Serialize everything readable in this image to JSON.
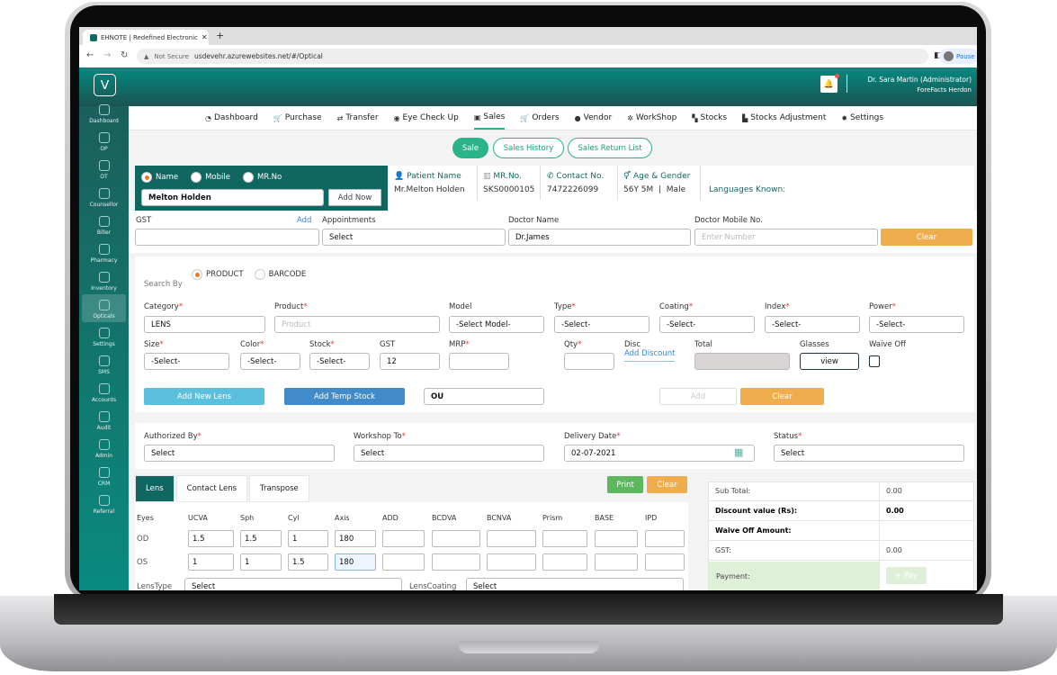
{
  "browser": {
    "tab_title": "EHNOTE | Redefined Electronic",
    "security": "Not Secure",
    "url": "usdevehr.azurewebsites.net/#/Optical",
    "profile": "Pause"
  },
  "header": {
    "user_name": "Dr. Sara Martin (Administrator)",
    "org": "ForeFacts Herdon"
  },
  "sidebar": {
    "items": [
      {
        "label": "Dashboard"
      },
      {
        "label": "OP"
      },
      {
        "label": "OT"
      },
      {
        "label": "Counsellor"
      },
      {
        "label": "Biller"
      },
      {
        "label": "Pharmacy"
      },
      {
        "label": "Inventory"
      },
      {
        "label": "Opticals",
        "active": true
      },
      {
        "label": "Settings"
      },
      {
        "label": "SMS"
      },
      {
        "label": "Accounts"
      },
      {
        "label": "Audit"
      },
      {
        "label": "Admin"
      },
      {
        "label": "CRM"
      },
      {
        "label": "Referral"
      }
    ]
  },
  "nav": {
    "items": [
      {
        "label": "Dashboard",
        "icon": "dashboard-icon"
      },
      {
        "label": "Purchase",
        "icon": "cart-icon"
      },
      {
        "label": "Transfer",
        "icon": "transfer-icon"
      },
      {
        "label": "Eye Check Up",
        "icon": "eye-icon"
      },
      {
        "label": "Sales",
        "icon": "money-icon",
        "active": true
      },
      {
        "label": "Orders",
        "icon": "cart-icon"
      },
      {
        "label": "Vendor",
        "icon": "user-icon"
      },
      {
        "label": "WorkShop",
        "icon": "gears-icon"
      },
      {
        "label": "Stocks",
        "icon": "boxes-icon"
      },
      {
        "label": "Stocks Adjustment",
        "icon": "truck-icon"
      },
      {
        "label": "Settings",
        "icon": "gear-icon"
      }
    ]
  },
  "subtabs": {
    "sale": "Sale",
    "history": "Sales History",
    "returns": "Sales Return List"
  },
  "patient_search": {
    "options": [
      "Name",
      "Mobile",
      "MR.No"
    ],
    "selected": "Name",
    "value": "Melton Holden",
    "add_now": "Add Now"
  },
  "patient": {
    "name_label": "Patient Name",
    "name": "Mr.Melton Holden",
    "mr_label": "MR.No.",
    "mr": "SKS0000105",
    "contact_label": "Contact No.",
    "contact": "7472226099",
    "age_label": "Age & Gender",
    "age": "56Y 5M",
    "gender": "Male",
    "languages_label": "Languages Known:"
  },
  "billing": {
    "gst_label": "GST",
    "gst_add": "Add",
    "gst_value": "",
    "appointments_label": "Appointments",
    "appointments": "Select",
    "doctor_label": "Doctor Name",
    "doctor": "Dr.James",
    "doctor_mobile_label": "Doctor Mobile No.",
    "doctor_mobile_placeholder": "Enter Number",
    "clear": "Clear"
  },
  "product": {
    "search_by": "Search By",
    "search_options": [
      "PRODUCT",
      "BARCODE"
    ],
    "selected": "PRODUCT",
    "category_label": "Category",
    "category": "LENS",
    "product_label": "Product",
    "product_placeholder": "Product",
    "model_label": "Model",
    "model": "-Select Model-",
    "type_label": "Type",
    "type": "-Select-",
    "coating_label": "Coating",
    "coating": "-Select-",
    "index_label": "Index",
    "index": "-Select-",
    "power_label": "Power",
    "power": "-Select-",
    "size_label": "Size",
    "size": "-Select-",
    "color_label": "Color",
    "color": "-Select-",
    "stock_label": "Stock",
    "stock": "-Select-",
    "gst_label": "GST",
    "gst": "12",
    "mrp_label": "MRP",
    "mrp": "",
    "qty_label": "Qty",
    "qty": "",
    "disc_label": "Disc",
    "add_discount": "Add Discount",
    "total_label": "Total",
    "glasses_label": "Glasses",
    "view": "view",
    "waive_label": "Waive Off",
    "waive_off": false,
    "add_new_lens": "Add New Lens",
    "add_temp_stock": "Add Temp Stock",
    "eye": "OU",
    "add": "Add",
    "clear": "Clear"
  },
  "order": {
    "authorized_label": "Authorized By",
    "authorized": "Select",
    "workshop_label": "Workshop To",
    "workshop": "Select",
    "delivery_label": "Delivery Date",
    "delivery": "02-07-2021",
    "status_label": "Status",
    "status": "Select"
  },
  "lens_tabs": {
    "tabs": [
      "Lens",
      "Contact Lens",
      "Transpose"
    ],
    "active": "Lens",
    "print": "Print",
    "clear": "Clear"
  },
  "rx": {
    "columns": [
      "Eyes",
      "UCVA",
      "Sph",
      "Cyl",
      "Axis",
      "ADD",
      "BCDVA",
      "BCNVA",
      "Prism",
      "BASE",
      "IPD"
    ],
    "rows": [
      {
        "eye": "OD",
        "values": [
          "1.5",
          "1.5",
          "1",
          "180",
          "",
          "",
          "",
          "",
          "",
          ""
        ]
      },
      {
        "eye": "OS",
        "values": [
          "1",
          "1",
          "1.5",
          "180",
          "",
          "",
          "",
          "",
          "",
          ""
        ]
      }
    ],
    "lens_type_label": "LensType",
    "lens_type": "Select",
    "lens_coating_label": "LensCoating",
    "lens_coating": "Select"
  },
  "summary": {
    "rows": [
      {
        "label": "Sub Total:",
        "value": "0.00"
      },
      {
        "label": "Discount value (Rs):",
        "value": "0.00",
        "bold": true
      },
      {
        "label": "Waive Off Amount:",
        "value": "",
        "bold": true
      },
      {
        "label": "GST:",
        "value": "0.00"
      }
    ],
    "payment_label": "Payment:",
    "pay": "+ Pay"
  },
  "colors": {
    "teal": "#0f6a63",
    "accent": "#2bb38a",
    "orange": "#efad4e",
    "green": "#5cb85c",
    "info": "#5bc0de",
    "primary": "#428bca"
  }
}
